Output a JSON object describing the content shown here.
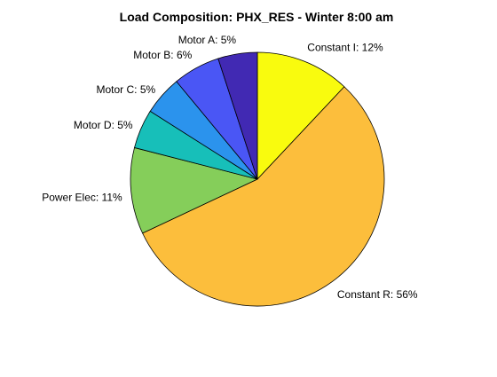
{
  "chart_data": {
    "type": "pie",
    "title": "Load Composition: PHX_RES - Winter 8:00 am",
    "start": "12 o'clock",
    "direction": "clockwise",
    "slices": [
      {
        "name": "Constant I",
        "value": 12,
        "label": "Constant I: 12%",
        "color": "#F9FB0E"
      },
      {
        "name": "Constant R",
        "value": 56,
        "label": "Constant R: 56%",
        "color": "#FCBE3C"
      },
      {
        "name": "Power Elec",
        "value": 11,
        "label": "Power Elec: 11%",
        "color": "#85CE5A"
      },
      {
        "name": "Motor D",
        "value": 5,
        "label": "Motor D: 5%",
        "color": "#17BFB9"
      },
      {
        "name": "Motor C",
        "value": 5,
        "label": "Motor C: 5%",
        "color": "#2B93ED"
      },
      {
        "name": "Motor B",
        "value": 6,
        "label": "Motor B: 6%",
        "color": "#4A56F5"
      },
      {
        "name": "Motor A",
        "value": 5,
        "label": "Motor A: 5%",
        "color": "#4129B3"
      }
    ]
  }
}
